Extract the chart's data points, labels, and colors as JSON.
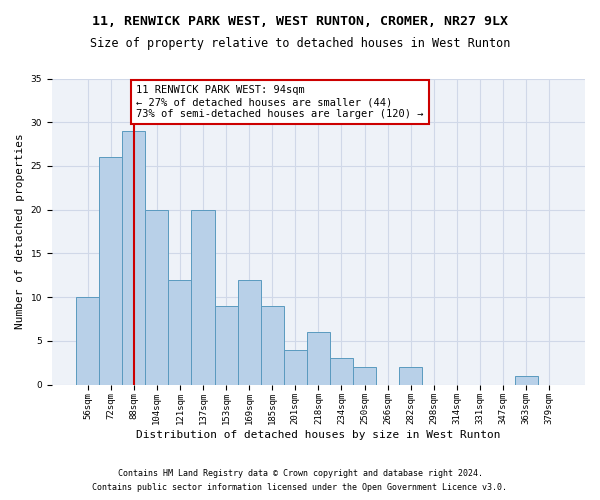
{
  "title": "11, RENWICK PARK WEST, WEST RUNTON, CROMER, NR27 9LX",
  "subtitle": "Size of property relative to detached houses in West Runton",
  "xlabel": "Distribution of detached houses by size in West Runton",
  "ylabel": "Number of detached properties",
  "categories": [
    "56sqm",
    "72sqm",
    "88sqm",
    "104sqm",
    "121sqm",
    "137sqm",
    "153sqm",
    "169sqm",
    "185sqm",
    "201sqm",
    "218sqm",
    "234sqm",
    "250sqm",
    "266sqm",
    "282sqm",
    "298sqm",
    "314sqm",
    "331sqm",
    "347sqm",
    "363sqm",
    "379sqm"
  ],
  "values": [
    10,
    26,
    29,
    20,
    12,
    20,
    9,
    12,
    9,
    4,
    6,
    3,
    2,
    0,
    2,
    0,
    0,
    0,
    0,
    1,
    0
  ],
  "bar_color": "#b8d0e8",
  "bar_edgecolor": "#5a9abf",
  "vline_color": "#cc0000",
  "annotation_text": "11 RENWICK PARK WEST: 94sqm\n← 27% of detached houses are smaller (44)\n73% of semi-detached houses are larger (120) →",
  "annotation_box_color": "white",
  "annotation_box_edgecolor": "#cc0000",
  "ylim": [
    0,
    35
  ],
  "yticks": [
    0,
    5,
    10,
    15,
    20,
    25,
    30,
    35
  ],
  "grid_color": "#d0d8e8",
  "background_color": "#eef2f8",
  "footer1": "Contains HM Land Registry data © Crown copyright and database right 2024.",
  "footer2": "Contains public sector information licensed under the Open Government Licence v3.0.",
  "title_fontsize": 9.5,
  "subtitle_fontsize": 8.5,
  "xlabel_fontsize": 8,
  "ylabel_fontsize": 8,
  "tick_fontsize": 6.5,
  "annotation_fontsize": 7.5,
  "footer_fontsize": 6
}
